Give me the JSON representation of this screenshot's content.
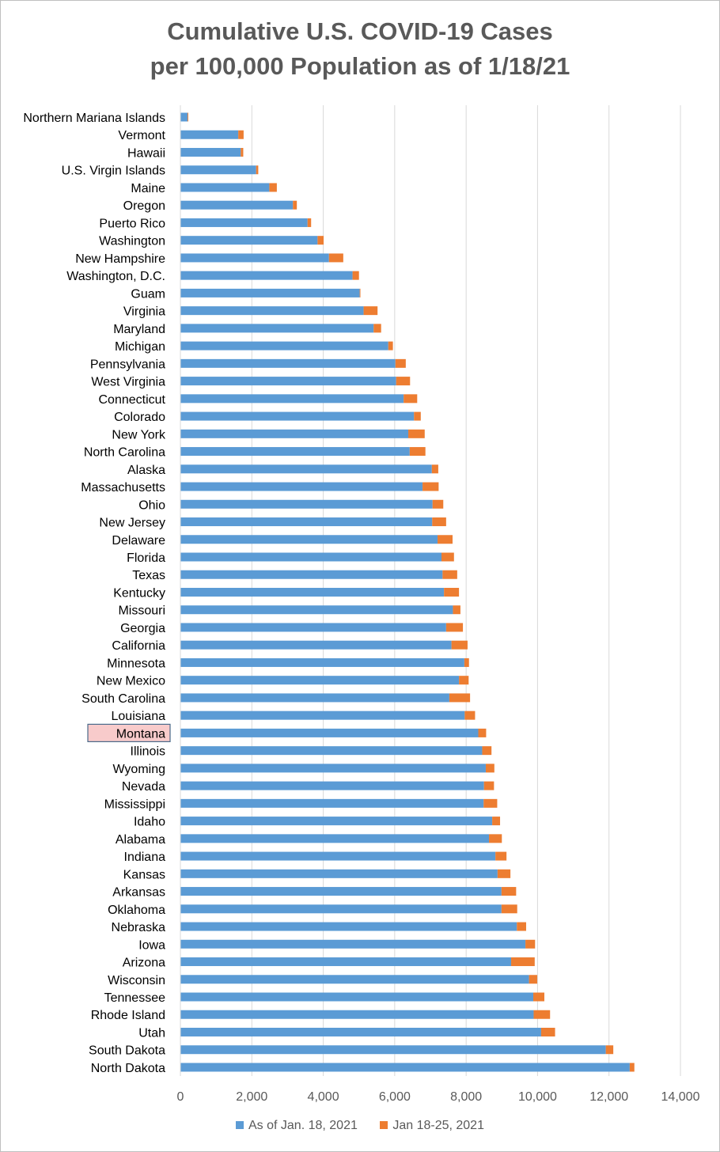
{
  "title_line1": "Cumulative U.S. COVID-19 Cases",
  "title_line2": "per 100,000 Population as of 1/18/21",
  "colors": {
    "base": "#5b9bd5",
    "increment": "#ed7d31",
    "grid": "#d9d9d9",
    "text": "#595959",
    "highlight_fill": "#f8cbcb",
    "highlight_border": "#4a6a8a"
  },
  "chart_data": {
    "type": "bar",
    "orientation": "horizontal",
    "stacked": true,
    "grid": true,
    "legend_position": "bottom",
    "xlim": [
      0,
      14000
    ],
    "x_ticks": [
      "0",
      "2,000",
      "4,000",
      "6,000",
      "8,000",
      "10,000",
      "12,000",
      "14,000"
    ],
    "highlighted_category": "Montana",
    "categories": [
      "Northern Mariana Islands",
      "Vermont",
      "Hawaii",
      "U.S. Virgin Islands",
      "Maine",
      "Oregon",
      "Puerto Rico",
      "Washington",
      "New Hampshire",
      "Washington, D.C.",
      "Guam",
      "Virginia",
      "Maryland",
      "Michigan",
      "Pennsylvania",
      "West Virginia",
      "Connecticut",
      "Colorado",
      "New York",
      "North Carolina",
      "Alaska",
      "Massachusetts",
      "Ohio",
      "New Jersey",
      "Delaware",
      "Florida",
      "Texas",
      "Kentucky",
      "Missouri",
      "Georgia",
      "California",
      "Minnesota",
      "New Mexico",
      "South Carolina",
      "Louisiana",
      "Montana",
      "Illinois",
      "Wyoming",
      "Nevada",
      "Mississippi",
      "Idaho",
      "Alabama",
      "Indiana",
      "Kansas",
      "Arkansas",
      "Oklahoma",
      "Nebraska",
      "Iowa",
      "Arizona",
      "Wisconsin",
      "Tennessee",
      "Rhode Island",
      "Utah",
      "South Dakota",
      "North Dakota"
    ],
    "series": [
      {
        "name": "As of Jan. 18, 2021",
        "values": [
          200,
          1620,
          1690,
          2120,
          2490,
          3150,
          3560,
          3840,
          4160,
          4820,
          5020,
          5130,
          5410,
          5820,
          6020,
          6040,
          6250,
          6540,
          6380,
          6420,
          7040,
          6780,
          7060,
          7050,
          7200,
          7310,
          7340,
          7380,
          7630,
          7440,
          7590,
          7950,
          7800,
          7530,
          7960,
          8340,
          8450,
          8550,
          8500,
          8490,
          8730,
          8640,
          8820,
          8880,
          8990,
          8990,
          9420,
          9660,
          9260,
          9760,
          9880,
          9890,
          10100,
          11910,
          12580
        ]
      },
      {
        "name": "Jan 18-25, 2021",
        "values": [
          20,
          150,
          70,
          60,
          210,
          110,
          100,
          170,
          400,
          180,
          20,
          390,
          210,
          130,
          290,
          390,
          380,
          190,
          460,
          440,
          180,
          450,
          300,
          390,
          420,
          350,
          410,
          420,
          210,
          470,
          450,
          130,
          270,
          580,
          290,
          220,
          260,
          240,
          280,
          380,
          220,
          360,
          310,
          360,
          410,
          440,
          260,
          270,
          660,
          230,
          310,
          460,
          390,
          210,
          130
        ]
      }
    ]
  },
  "legend": {
    "label_base": "As of Jan. 18, 2021",
    "label_increment": "Jan 18-25, 2021"
  }
}
